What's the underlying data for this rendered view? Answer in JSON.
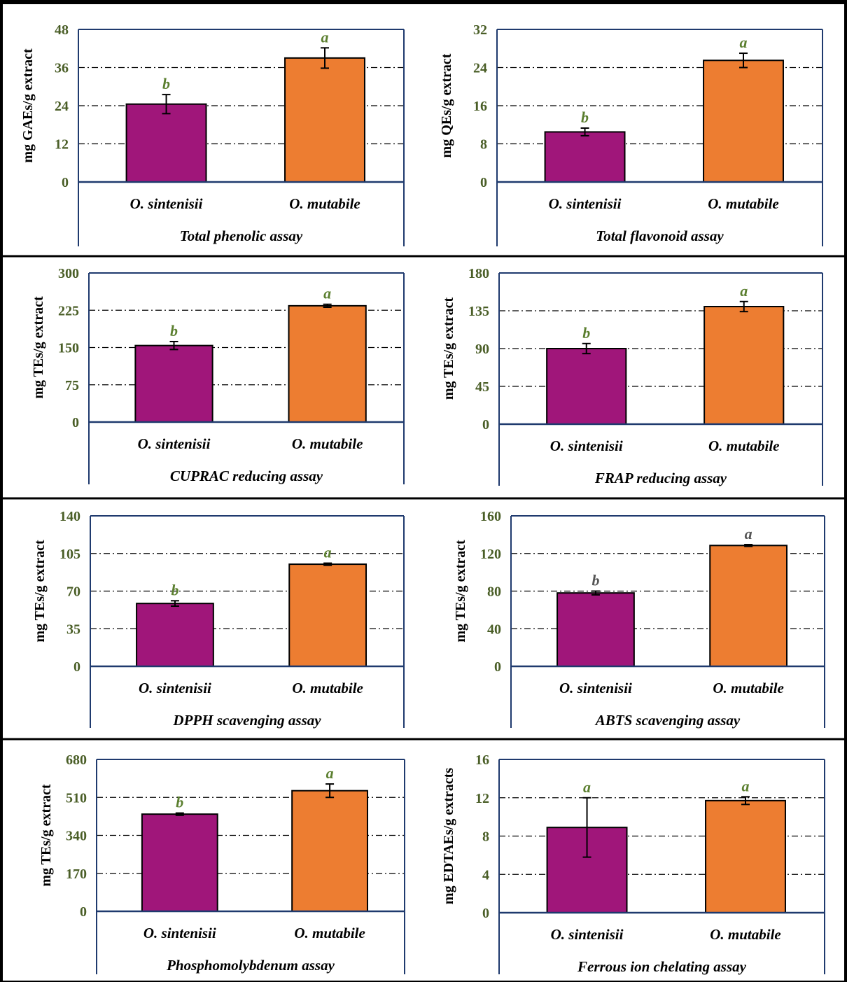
{
  "colors": {
    "axis": "#1f3a6e",
    "tick_label": "#4a5e27",
    "letter_green": "#5b7f2f",
    "letter_gray": "#555555",
    "bar1": "#a0167a",
    "bar2": "#ed7d31",
    "grid": "#000000",
    "text": "#000000"
  },
  "chart_data": [
    {
      "type": "bar",
      "title": "Total phenolic assay",
      "ylabel": "mg GAEs/g extract",
      "categories": [
        "O. sintenisii",
        "O. mutabile"
      ],
      "values": [
        24.5,
        39
      ],
      "errors": [
        3,
        3.2
      ],
      "letters": [
        "b",
        "a"
      ],
      "letter_colors": [
        "green",
        "green"
      ],
      "ylim": [
        0,
        48
      ],
      "yticks": [
        "0",
        "12",
        "24",
        "36",
        "48"
      ],
      "grid": true
    },
    {
      "type": "bar",
      "title": "Total flavonoid assay",
      "ylabel": "mg QEs/g extract",
      "categories": [
        "O. sintenisii",
        "O. mutabile"
      ],
      "values": [
        10.5,
        25.5
      ],
      "errors": [
        0.8,
        1.5
      ],
      "letters": [
        "b",
        "a"
      ],
      "letter_colors": [
        "green",
        "green"
      ],
      "ylim": [
        0,
        32
      ],
      "yticks": [
        "0",
        "8",
        "16",
        "24",
        "32"
      ],
      "grid": true
    },
    {
      "type": "bar",
      "title": "CUPRAC reducing assay",
      "ylabel": "mg TEs/g extract",
      "categories": [
        "O. sintenisii",
        "O. mutabile"
      ],
      "values": [
        154,
        234
      ],
      "errors": [
        8,
        3
      ],
      "letters": [
        "b",
        "a"
      ],
      "letter_colors": [
        "green",
        "green"
      ],
      "ylim": [
        0,
        300
      ],
      "yticks": [
        "0",
        "75",
        "150",
        "225",
        "300"
      ],
      "grid": true
    },
    {
      "type": "bar",
      "title": "FRAP reducing assay",
      "ylabel": "mg TEs/g extract",
      "categories": [
        "O. sintenisii",
        "O. mutabile"
      ],
      "values": [
        90,
        140
      ],
      "errors": [
        6,
        6
      ],
      "letters": [
        "b",
        "a"
      ],
      "letter_colors": [
        "green",
        "green"
      ],
      "ylim": [
        0,
        180
      ],
      "yticks": [
        "0",
        "45",
        "90",
        "135",
        "180"
      ],
      "grid": true
    },
    {
      "type": "bar",
      "title": "DPPH scavenging assay",
      "ylabel": "mg TEs/g extract",
      "categories": [
        "O. sintenisii",
        "O. mutabile"
      ],
      "values": [
        58.5,
        95
      ],
      "errors": [
        2.5,
        1
      ],
      "letters": [
        "b",
        "a"
      ],
      "letter_colors": [
        "green",
        "green"
      ],
      "ylim": [
        0,
        140
      ],
      "yticks": [
        "0",
        "35",
        "70",
        "105",
        "140"
      ],
      "grid": true
    },
    {
      "type": "bar",
      "title": "ABTS scavenging assay",
      "ylabel": "mg TEs/g extract",
      "categories": [
        "O. sintenisii",
        "O. mutabile"
      ],
      "values": [
        78,
        128.5
      ],
      "errors": [
        2,
        1
      ],
      "letters": [
        "b",
        "a"
      ],
      "letter_colors": [
        "gray",
        "gray"
      ],
      "ylim": [
        0,
        160
      ],
      "yticks": [
        "0",
        "40",
        "80",
        "120",
        "160"
      ],
      "grid": true
    },
    {
      "type": "bar",
      "title": "Phosphomolybdenum assay",
      "ylabel": "mg TEs/g extract",
      "categories": [
        "O. sintenisii",
        "O. mutabile"
      ],
      "values": [
        435,
        540
      ],
      "errors": [
        5,
        30
      ],
      "letters": [
        "b",
        "a"
      ],
      "letter_colors": [
        "green",
        "green"
      ],
      "ylim": [
        0,
        680
      ],
      "yticks": [
        "0",
        "170",
        "340",
        "510",
        "680"
      ],
      "grid": true
    },
    {
      "type": "bar",
      "title": "Ferrous ion chelating assay",
      "ylabel": "mg EDTAEs/g extracts",
      "categories": [
        "O. sintenisii",
        "O. mutabile"
      ],
      "values": [
        8.9,
        11.7
      ],
      "errors": [
        3.1,
        0.4
      ],
      "letters": [
        "a",
        "a"
      ],
      "letter_colors": [
        "green",
        "green"
      ],
      "ylim": [
        0,
        16
      ],
      "yticks": [
        "0",
        "4",
        "8",
        "12",
        "16"
      ],
      "grid": true
    }
  ]
}
